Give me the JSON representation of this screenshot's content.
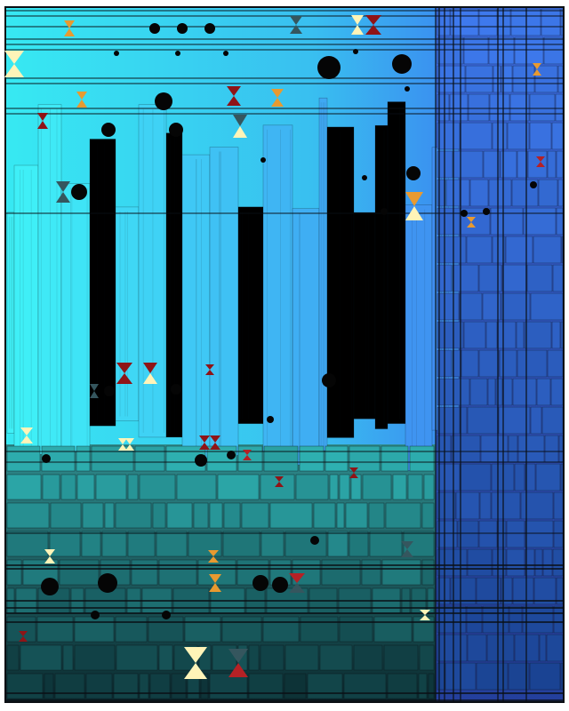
{
  "artwork": {
    "palette": {
      "cyan_top": "#3ff2f7",
      "teal_mid": "#2fb3b4",
      "green_mid": "#3ec7a0",
      "blue_right": "#3f7bf0",
      "deep_blue": "#3355e0",
      "navy": "#173e8a",
      "dark_teal": "#0f3f43",
      "darkest": "#0b2a2f",
      "line": "#0a0f14",
      "dot": "#050505",
      "cream": "#fff4b8",
      "orange": "#e89a30",
      "crimson": "#8f1417",
      "red": "#b52125",
      "slate": "#35565e"
    }
  }
}
